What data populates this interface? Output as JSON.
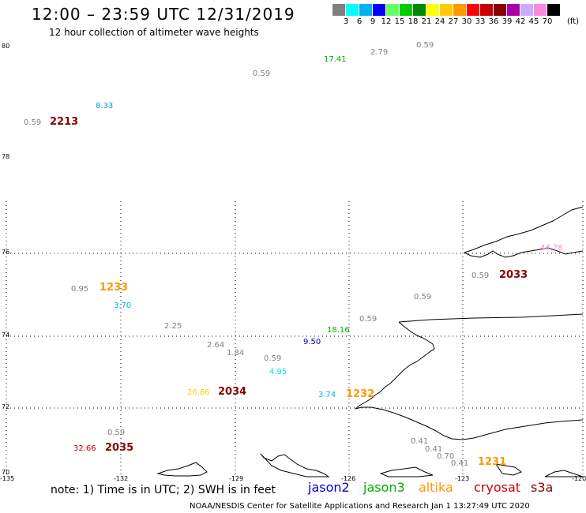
{
  "header": {
    "title": "12:00 – 23:59 UTC 12/31/2019",
    "subtitle": "12 hour collection of altimeter wave heights"
  },
  "legend": {
    "unit": "(ft)",
    "items": [
      {
        "label": "3",
        "color": "#808080"
      },
      {
        "label": "6",
        "color": "#00ffff"
      },
      {
        "label": "9",
        "color": "#00b0f0"
      },
      {
        "label": "12",
        "color": "#0000ff"
      },
      {
        "label": "15",
        "color": "#66ff66"
      },
      {
        "label": "18",
        "color": "#00cc00"
      },
      {
        "label": "21",
        "color": "#008800"
      },
      {
        "label": "24",
        "color": "#ffff00"
      },
      {
        "label": "27",
        "color": "#ffcc00"
      },
      {
        "label": "30",
        "color": "#ff9900"
      },
      {
        "label": "33",
        "color": "#ff0000"
      },
      {
        "label": "36",
        "color": "#cc0000"
      },
      {
        "label": "39",
        "color": "#880000"
      },
      {
        "label": "42",
        "color": "#aa00aa"
      },
      {
        "label": "45",
        "color": "#ccaaff"
      },
      {
        "label": "70",
        "color": "#ff88dd"
      },
      {
        "label": "",
        "color": "#000000"
      }
    ]
  },
  "axes": {
    "lat_labels": [
      "80",
      "78",
      "76",
      "74",
      "72",
      "70"
    ],
    "lon_labels": [
      "-135",
      "-132",
      "-129",
      "-126",
      "-123",
      "-120"
    ]
  },
  "map_labels": {
    "wave_heights": [
      {
        "text": "17.41",
        "color": "#00aa00"
      },
      {
        "text": "2.79",
        "color": "#808080"
      },
      {
        "text": "0.59",
        "color": "#808080"
      },
      {
        "text": "0.59",
        "color": "#808080"
      },
      {
        "text": "8.33",
        "color": "#00a0d0"
      },
      {
        "text": "0.59",
        "color": "#808080"
      },
      {
        "text": "0.95",
        "color": "#808080"
      },
      {
        "text": "3.70",
        "color": "#00b0f0"
      },
      {
        "text": "2.25",
        "color": "#808080"
      },
      {
        "text": "2.64",
        "color": "#808080"
      },
      {
        "text": "1.84",
        "color": "#808080"
      },
      {
        "text": "0.59",
        "color": "#808080"
      },
      {
        "text": "4.95",
        "color": "#00e0e0"
      },
      {
        "text": "9.50",
        "color": "#0000cc"
      },
      {
        "text": "18.16",
        "color": "#00aa00"
      },
      {
        "text": "0.59",
        "color": "#808080"
      },
      {
        "text": "0.59",
        "color": "#808080"
      },
      {
        "text": "0.59",
        "color": "#808080"
      },
      {
        "text": "44.78",
        "color": "#ff88dd"
      },
      {
        "text": "26.86",
        "color": "#ffcc00"
      },
      {
        "text": "3.74",
        "color": "#00b0f0"
      },
      {
        "text": "0.59",
        "color": "#808080"
      },
      {
        "text": "32.66",
        "color": "#cc0000"
      },
      {
        "text": "0.41",
        "color": "#808080"
      },
      {
        "text": "0.41",
        "color": "#808080"
      },
      {
        "text": "0.70",
        "color": "#808080"
      },
      {
        "text": "0.41",
        "color": "#808080"
      }
    ],
    "pass_times": [
      {
        "text": "2213",
        "color": "#880000"
      },
      {
        "text": "1233",
        "color": "#ff9900"
      },
      {
        "text": "2033",
        "color": "#880000"
      },
      {
        "text": "2034",
        "color": "#880000"
      },
      {
        "text": "1232",
        "color": "#ff9900"
      },
      {
        "text": "2035",
        "color": "#880000"
      },
      {
        "text": "1231",
        "color": "#ff9900"
      }
    ]
  },
  "footer": {
    "note": "note:  1) Time is in UTC;  2) SWH is in feet",
    "satellites": [
      {
        "name": "jason2",
        "color": "#0000cc"
      },
      {
        "name": "jason3",
        "color": "#00aa00"
      },
      {
        "name": "altika",
        "color": "#ff9900"
      },
      {
        "name": "cryosat",
        "color": "#cc0000"
      },
      {
        "name": "s3a",
        "color": "#880000"
      }
    ],
    "credit": "NOAA/NESDIS Center for Satellite Applications and Research    Jan  1 13:27:49 UTC 2020"
  }
}
